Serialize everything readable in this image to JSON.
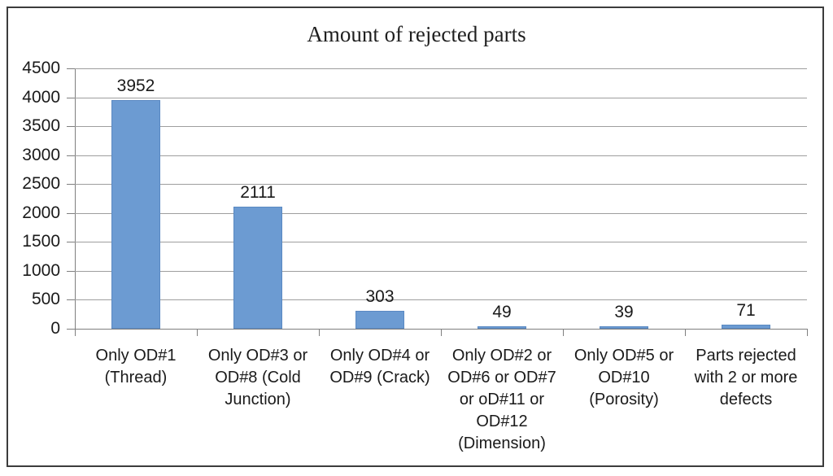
{
  "chart_data": {
    "type": "bar",
    "title": "Amount of rejected parts",
    "categories": [
      "Only OD#1 (Thread)",
      "Only OD#3 or OD#8 (Cold Junction)",
      "Only OD#4 or OD#9 (Crack)",
      "Only OD#2 or OD#6 or OD#7 or oD#11 or OD#12 (Dimension)",
      "Only OD#5 or OD#10 (Porosity)",
      "Parts rejected with 2 or more defects"
    ],
    "categories_display": [
      "Only OD#1\n(Thread)",
      "Only OD#3 or\nOD#8 (Cold\nJunction)",
      "Only OD#4 or\nOD#9 (Crack)",
      "Only OD#2 or\nOD#6 or OD#7\nor oD#11 or\nOD#12\n(Dimension)",
      "Only OD#5 or\nOD#10\n(Porosity)",
      "Parts rejected\nwith 2 or more\ndefects"
    ],
    "values": [
      3952,
      2111,
      303,
      49,
      39,
      71
    ],
    "data_labels": [
      "3952",
      "2111",
      "303",
      "49",
      "39",
      "71"
    ],
    "xlabel": "",
    "ylabel": "",
    "ylim": [
      0,
      4500
    ],
    "ytick_step": 500,
    "yticks": [
      0,
      500,
      1000,
      1500,
      2000,
      2500,
      3000,
      3500,
      4000,
      4500
    ],
    "ytick_labels": [
      "0",
      "500",
      "1000",
      "1500",
      "2000",
      "2500",
      "3000",
      "3500",
      "4000",
      "4500"
    ],
    "grid": "horizontal",
    "legend": "none",
    "colors": {
      "bar_fill": "#6c9bd2",
      "bar_border": "#5a89c2",
      "gridline": "#9e9e9e",
      "axis": "#7f7f7f",
      "text": "#1a1a1a",
      "frame_border": "#3c3c3c",
      "background": "#ffffff"
    }
  }
}
